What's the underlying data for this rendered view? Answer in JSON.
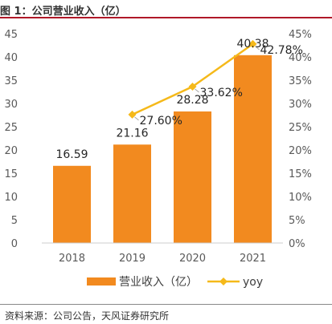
{
  "header": {
    "title": "图 1：公司营业收入（亿）"
  },
  "footer": {
    "source": "资料来源：公司公告，天风证券研究所"
  },
  "chart_data": {
    "type": "bar",
    "categories": [
      "2018",
      "2019",
      "2020",
      "2021"
    ],
    "series": [
      {
        "name": "营业收入（亿）",
        "type": "bar",
        "axis": "left",
        "values": [
          16.59,
          21.16,
          28.28,
          40.38
        ],
        "labels": [
          "16.59",
          "21.16",
          "28.28",
          "40.38"
        ],
        "color": "#f28a1f"
      },
      {
        "name": "yoy",
        "type": "line",
        "axis": "right",
        "values": [
          null,
          27.6,
          33.62,
          42.78
        ],
        "labels": [
          "",
          "27.60%",
          "33.62%",
          "42.78%"
        ],
        "color": "#f5b91a"
      }
    ],
    "y_left": {
      "min": 0,
      "max": 45,
      "step": 5,
      "ticks": [
        "0",
        "5",
        "10",
        "15",
        "20",
        "25",
        "30",
        "35",
        "40",
        "45"
      ]
    },
    "y_right": {
      "min": 0,
      "max": 45,
      "step": 5,
      "ticks": [
        "0%",
        "5%",
        "10%",
        "15%",
        "20%",
        "25%",
        "30%",
        "35%",
        "40%",
        "45%"
      ]
    },
    "grid": false,
    "legend": "bottom"
  }
}
